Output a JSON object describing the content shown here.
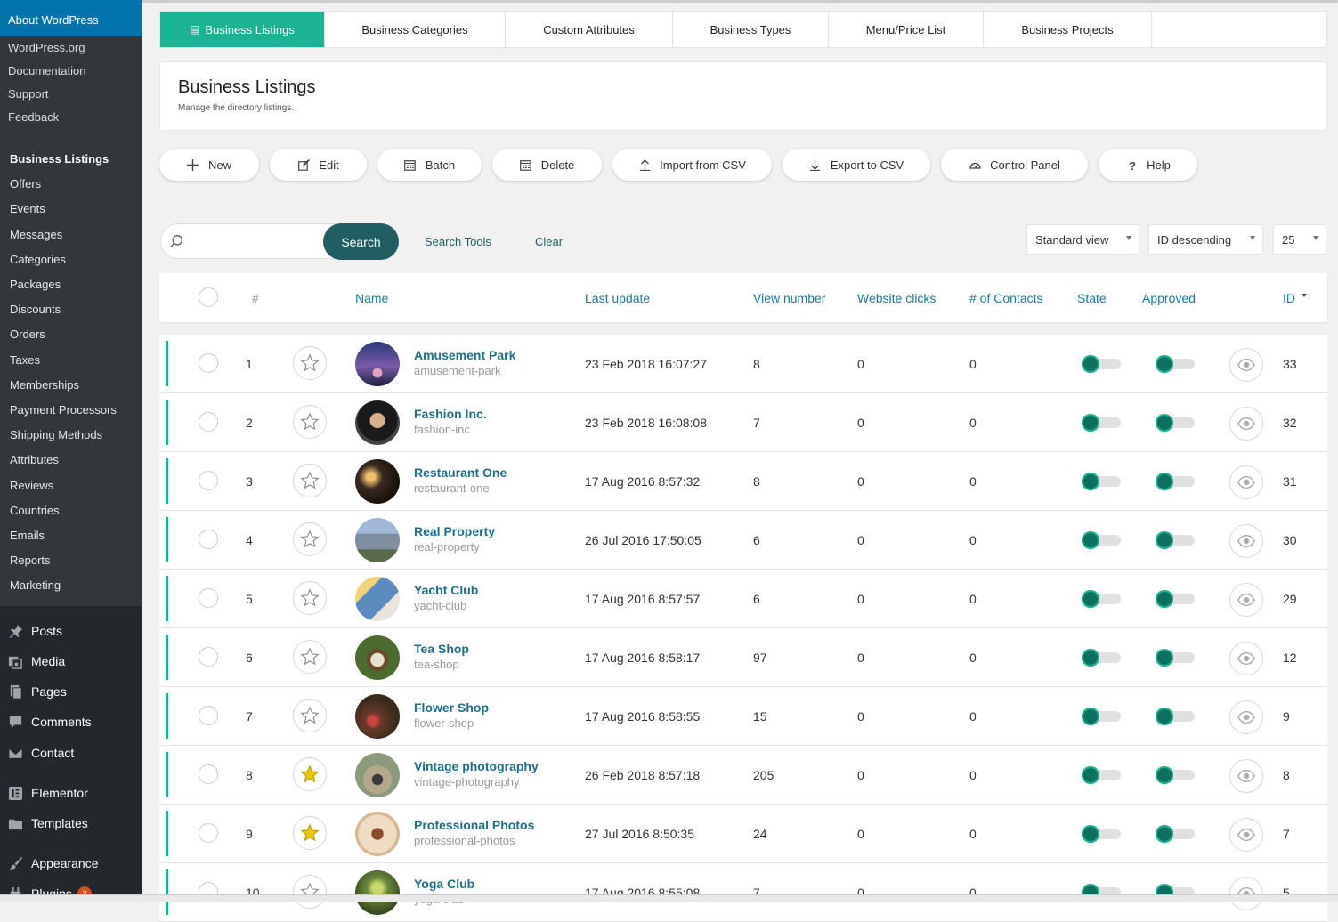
{
  "sidebar": {
    "about": {
      "title": "About WordPress",
      "links": [
        "WordPress.org",
        "Documentation",
        "Support",
        "Feedback"
      ]
    },
    "submenu": [
      "Business Listings",
      "Offers",
      "Events",
      "Messages",
      "Categories",
      "Packages",
      "Discounts",
      "Orders",
      "Taxes",
      "Memberships",
      "Payment Processors",
      "Shipping Methods",
      "Attributes",
      "Reviews",
      "Countries",
      "Emails",
      "Reports",
      "Marketing"
    ],
    "current": "Business Listings",
    "wp_menu": [
      {
        "label": "Posts",
        "icon": "pushpin-icon"
      },
      {
        "label": "Media",
        "icon": "media-icon"
      },
      {
        "label": "Pages",
        "icon": "pages-icon"
      },
      {
        "label": "Comments",
        "icon": "comments-icon"
      },
      {
        "label": "Contact",
        "icon": "envelope-icon"
      },
      {
        "label": "Elementor",
        "icon": "elementor-icon"
      },
      {
        "label": "Templates",
        "icon": "folder-icon"
      },
      {
        "label": "Appearance",
        "icon": "paintbrush-icon"
      },
      {
        "label": "Plugins",
        "icon": "plugin-icon",
        "badge": "3"
      }
    ]
  },
  "tabs": [
    {
      "label": "Business Listings",
      "active": true
    },
    {
      "label": "Business Categories"
    },
    {
      "label": "Custom Attributes"
    },
    {
      "label": "Business Types"
    },
    {
      "label": "Menu/Price List"
    },
    {
      "label": "Business Projects"
    }
  ],
  "header": {
    "title": "Business Listings",
    "subtitle": "Manage the directory listings."
  },
  "actions": [
    {
      "label": "New",
      "icon": "plus-icon"
    },
    {
      "label": "Edit",
      "icon": "edit-icon"
    },
    {
      "label": "Batch",
      "icon": "calendar-icon"
    },
    {
      "label": "Delete",
      "icon": "calendar-icon"
    },
    {
      "label": "Import from CSV",
      "icon": "upload-icon"
    },
    {
      "label": "Export to CSV",
      "icon": "download-icon"
    },
    {
      "label": "Control Panel",
      "icon": "dashboard-icon"
    },
    {
      "label": "Help",
      "icon": "question-icon"
    }
  ],
  "search": {
    "placeholder": "",
    "button": "Search",
    "tools": "Search Tools",
    "clear": "Clear",
    "view": "Standard view",
    "order": "ID descending",
    "limit": "25"
  },
  "table": {
    "columns": {
      "num": "#",
      "name": "Name",
      "last_update": "Last update",
      "views": "View number",
      "clicks": "Website clicks",
      "contacts": "# of Contacts",
      "state": "State",
      "approved": "Approved",
      "id": "ID"
    },
    "rows": [
      {
        "n": "1",
        "name": "Amusement Park",
        "alias": "amusement-park",
        "date": "23 Feb 2018 16:07:27",
        "views": "8",
        "clicks": "0",
        "contacts": "0",
        "id": "33",
        "featured": false,
        "state": true,
        "approved": true
      },
      {
        "n": "2",
        "name": "Fashion Inc.",
        "alias": "fashion-inc",
        "date": "23 Feb 2018 16:08:08",
        "views": "7",
        "clicks": "0",
        "contacts": "0",
        "id": "32",
        "featured": false,
        "state": true,
        "approved": true
      },
      {
        "n": "3",
        "name": "Restaurant One",
        "alias": "restaurant-one",
        "date": "17 Aug 2016 8:57:32",
        "views": "8",
        "clicks": "0",
        "contacts": "0",
        "id": "31",
        "featured": false,
        "state": true,
        "approved": true
      },
      {
        "n": "4",
        "name": "Real Property",
        "alias": "real-property",
        "date": "26 Jul 2016 17:50:05",
        "views": "6",
        "clicks": "0",
        "contacts": "0",
        "id": "30",
        "featured": false,
        "state": true,
        "approved": true
      },
      {
        "n": "5",
        "name": "Yacht Club",
        "alias": "yacht-club",
        "date": "17 Aug 2016 8:57:57",
        "views": "6",
        "clicks": "0",
        "contacts": "0",
        "id": "29",
        "featured": false,
        "state": true,
        "approved": true
      },
      {
        "n": "6",
        "name": "Tea Shop",
        "alias": "tea-shop",
        "date": "17 Aug 2016 8:58:17",
        "views": "97",
        "clicks": "0",
        "contacts": "0",
        "id": "12",
        "featured": false,
        "state": true,
        "approved": true
      },
      {
        "n": "7",
        "name": "Flower Shop",
        "alias": "flower-shop",
        "date": "17 Aug 2016 8:58:55",
        "views": "15",
        "clicks": "0",
        "contacts": "0",
        "id": "9",
        "featured": false,
        "state": true,
        "approved": true
      },
      {
        "n": "8",
        "name": "Vintage photography",
        "alias": "vintage-photography",
        "date": "26 Feb 2018 8:57:18",
        "views": "205",
        "clicks": "0",
        "contacts": "0",
        "id": "8",
        "featured": true,
        "state": true,
        "approved": true
      },
      {
        "n": "9",
        "name": "Professional Photos",
        "alias": "professional-photos",
        "date": "27 Jul 2016 8:50:35",
        "views": "24",
        "clicks": "0",
        "contacts": "0",
        "id": "7",
        "featured": true,
        "state": true,
        "approved": true
      },
      {
        "n": "10",
        "name": "Yoga Club",
        "alias": "yoga-club",
        "date": "17 Aug 2016 8:55:08",
        "views": "7",
        "clicks": "0",
        "contacts": "0",
        "id": "5",
        "featured": false,
        "state": true,
        "approved": true
      }
    ]
  },
  "colors": {
    "accent": "#1ab394",
    "primary_dark": "#1f5f63",
    "link": "#1e6f8a",
    "star_featured": "#e8c800"
  }
}
